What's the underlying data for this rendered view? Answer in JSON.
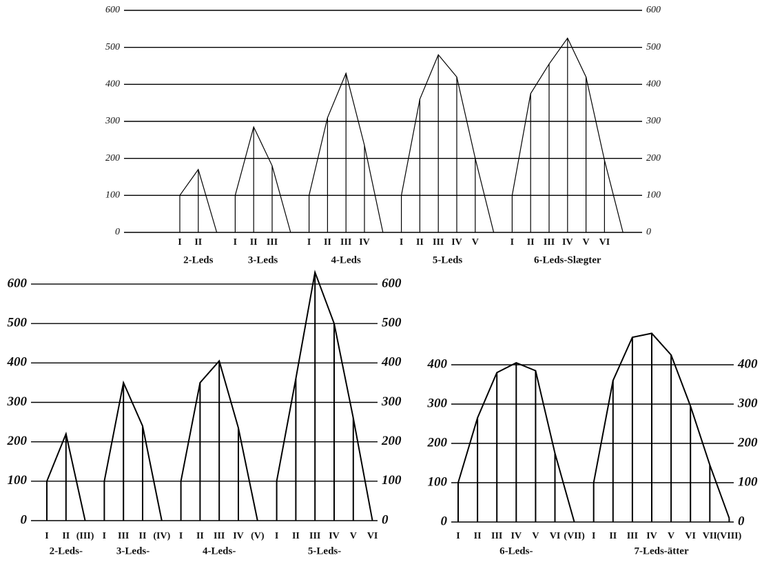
{
  "chart_data": [
    {
      "type": "line",
      "ylim": [
        0,
        600
      ],
      "yticks": [
        0,
        100,
        200,
        300,
        400,
        500,
        600
      ],
      "grid": true,
      "color": "#000000",
      "series": [
        {
          "name": "2-Leds",
          "categories": [
            "I",
            "II",
            null
          ],
          "values": [
            100,
            170,
            0
          ]
        },
        {
          "name": "3-Leds",
          "categories": [
            "I",
            "II",
            "III",
            null
          ],
          "values": [
            100,
            285,
            180,
            0
          ]
        },
        {
          "name": "4-Leds",
          "categories": [
            "I",
            "II",
            "III",
            "IV",
            null
          ],
          "values": [
            100,
            310,
            430,
            235,
            0
          ]
        },
        {
          "name": "5-Leds",
          "categories": [
            "I",
            "II",
            "III",
            "IV",
            "V",
            null
          ],
          "values": [
            100,
            360,
            480,
            420,
            200,
            0
          ]
        },
        {
          "name": "6-Leds-Slægter",
          "categories": [
            "I",
            "II",
            "III",
            "IV",
            "V",
            "VI",
            null
          ],
          "values": [
            100,
            375,
            455,
            525,
            420,
            195,
            0
          ]
        }
      ]
    },
    {
      "type": "line",
      "ylim": [
        0,
        650
      ],
      "yticks": [
        0,
        100,
        200,
        300,
        400,
        500,
        600
      ],
      "grid": true,
      "color": "#000000",
      "series": [
        {
          "name": "2-Leds-",
          "categories": [
            "I",
            "II",
            "(III)"
          ],
          "values": [
            100,
            220,
            0
          ]
        },
        {
          "name": "3-Leds-",
          "categories": [
            "I",
            "III",
            "II",
            "(IV)"
          ],
          "values": [
            100,
            350,
            240,
            0
          ]
        },
        {
          "name": "4-Leds-",
          "categories": [
            "I",
            "II",
            "III",
            "IV",
            "(V)"
          ],
          "values": [
            100,
            350,
            405,
            235,
            0
          ]
        },
        {
          "name": "5-Leds-",
          "categories": [
            "I",
            "II",
            "III",
            "IV",
            "V",
            "VI"
          ],
          "values": [
            100,
            360,
            630,
            500,
            260,
            0
          ]
        }
      ]
    },
    {
      "type": "line",
      "ylim": [
        0,
        500
      ],
      "yticks": [
        0,
        100,
        200,
        300,
        400
      ],
      "grid": true,
      "color": "#000000",
      "series": [
        {
          "name": "6-Leds-",
          "categories": [
            "I",
            "II",
            "III",
            "IV",
            "V",
            "VI",
            "(VII)"
          ],
          "values": [
            100,
            265,
            380,
            405,
            385,
            175,
            0
          ]
        },
        {
          "name": "7-Leds-ätter",
          "categories": [
            "I",
            "II",
            "III",
            "IV",
            "V",
            "VI",
            "VII",
            "(VIII)"
          ],
          "values": [
            100,
            360,
            470,
            480,
            425,
            295,
            145,
            10
          ]
        }
      ]
    }
  ]
}
